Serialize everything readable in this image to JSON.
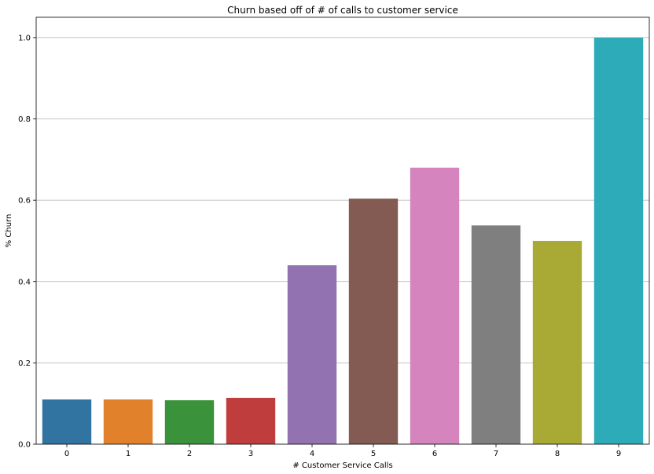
{
  "chart_data": {
    "type": "bar",
    "title": "Churn based off of # of calls to customer service",
    "xlabel": "# Customer Service Calls",
    "ylabel": "% Churn",
    "categories": [
      "0",
      "1",
      "2",
      "3",
      "4",
      "5",
      "6",
      "7",
      "8",
      "9"
    ],
    "values": [
      0.11,
      0.11,
      0.108,
      0.114,
      0.44,
      0.604,
      0.68,
      0.538,
      0.5,
      1.0
    ],
    "colors": [
      "#3274a1",
      "#e1812c",
      "#3a923a",
      "#c03d3e",
      "#9372b2",
      "#845b53",
      "#d684bd",
      "#7f7f7f",
      "#a9aa35",
      "#2eabb8"
    ],
    "ylim": [
      0,
      1.05
    ],
    "yticks": [
      "0.0",
      "0.2",
      "0.4",
      "0.6",
      "0.8",
      "1.0"
    ],
    "grid": "y",
    "legend": "none"
  }
}
